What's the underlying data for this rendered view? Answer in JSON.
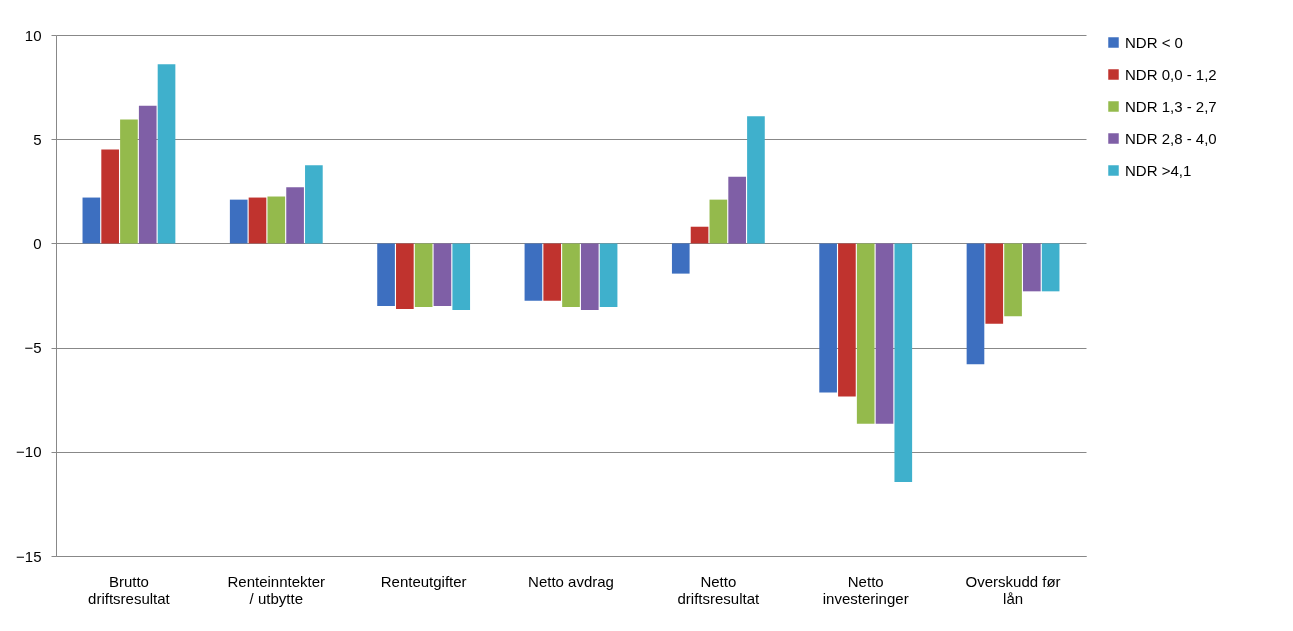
{
  "chart_data": {
    "type": "bar",
    "categories": [
      "Brutto driftsresultat",
      "Renteinntekter / utbytte",
      "Renteutgifter",
      "Netto avdrag",
      "Netto driftsresultat",
      "Netto investeringer",
      "Overskudd før lån"
    ],
    "series": [
      {
        "name": "NDR < 0",
        "color": "#3d6fc0",
        "values": [
          2.2,
          2.1,
          -3.0,
          -2.75,
          -1.45,
          -7.15,
          -5.8
        ]
      },
      {
        "name": "NDR 0,0 - 1,2",
        "color": "#c0332e",
        "values": [
          4.5,
          2.2,
          -3.15,
          -2.75,
          0.8,
          -7.35,
          -3.85
        ]
      },
      {
        "name": "NDR 1,3 - 2,7",
        "color": "#94ba4c",
        "values": [
          5.95,
          2.25,
          -3.05,
          -3.05,
          2.1,
          -8.65,
          -3.5
        ]
      },
      {
        "name": "NDR 2,8 - 4,0",
        "color": "#7f5fa6",
        "values": [
          6.6,
          2.7,
          -3.0,
          -3.2,
          3.2,
          -8.65,
          -2.3
        ]
      },
      {
        "name": "NDR >4,1",
        "color": "#3fb0cc",
        "values": [
          8.6,
          3.75,
          -3.2,
          -3.05,
          6.1,
          -11.45,
          -2.3
        ]
      }
    ],
    "ylim": [
      -15,
      10
    ],
    "yticks": [
      -15,
      -10,
      -5,
      0,
      5,
      10
    ],
    "grid": "y",
    "legend": "right"
  }
}
